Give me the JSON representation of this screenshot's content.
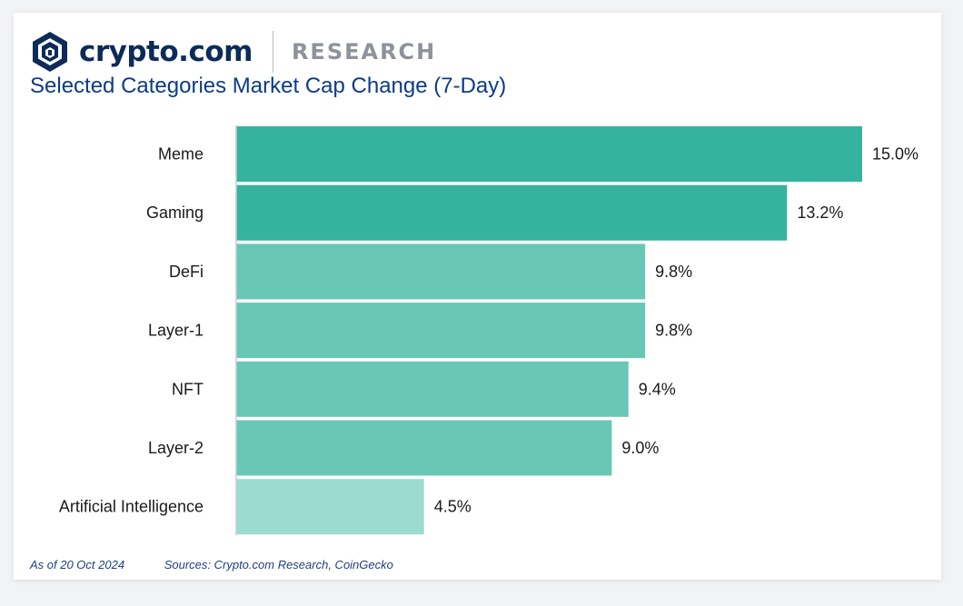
{
  "header": {
    "brand": "crypto.com",
    "section": "RESEARCH"
  },
  "chart_data": {
    "type": "bar",
    "orientation": "horizontal",
    "title": "Selected Categories Market Cap Change (7-Day)",
    "categories": [
      "Meme",
      "Gaming",
      "DeFi",
      "Layer-1",
      "NFT",
      "Layer-2",
      "Artificial Intelligence"
    ],
    "values": [
      15.0,
      13.2,
      9.8,
      9.8,
      9.4,
      9.0,
      4.5
    ],
    "value_labels": [
      "15.0%",
      "13.2%",
      "9.8%",
      "9.8%",
      "9.4%",
      "9.0%",
      "4.5%"
    ],
    "bar_colors": [
      "#35b39e",
      "#35b39e",
      "#69c7b6",
      "#69c7b6",
      "#69c7b6",
      "#69c7b6",
      "#9cdbd0"
    ],
    "xlim": [
      0,
      15.0
    ],
    "grid": false,
    "legend": "none"
  },
  "footer": {
    "date": "As of 20 Oct 2024",
    "sources": "Sources: Crypto.com Research, CoinGecko"
  },
  "colors": {
    "title": "#0c3b8a",
    "brand": "#0b2b59",
    "axis": "#c8ccd2"
  }
}
